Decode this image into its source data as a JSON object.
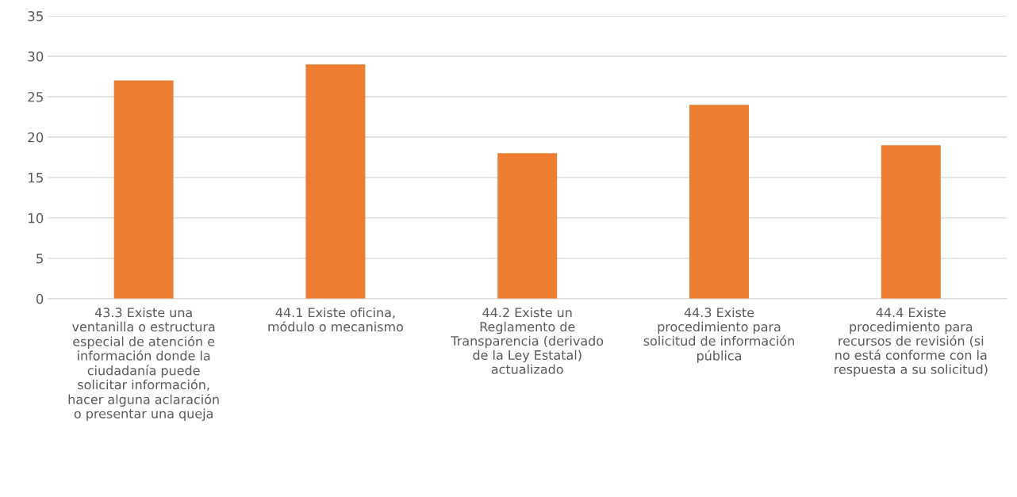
{
  "chart_data": {
    "type": "bar",
    "categories": [
      "43.3 Existe una\nventanilla o estructura\nespecial de atención e\ninformación donde la\nciudadanía puede\nsolicitar información,\nhacer alguna aclaración\no presentar una queja",
      "44.1 Existe oficina,\nmódulo o mecanismo",
      "44.2 Existe un\nReglamento de\nTransparencia (derivado\nde la Ley Estatal)\nactualizado",
      "44.3 Existe\nprocedimiento para\nsolicitud de información\npública",
      "44.4 Existe\nprocedimiento para\nrecursos de revisión (si\nno está conforme con la\nrespuesta a su solicitud)"
    ],
    "values": [
      27,
      29,
      18,
      24,
      19
    ],
    "color": "#ed7d31",
    "ylim": [
      0,
      35
    ],
    "yticks": [
      0,
      5,
      10,
      15,
      20,
      25,
      30,
      35
    ],
    "grid": "y"
  }
}
